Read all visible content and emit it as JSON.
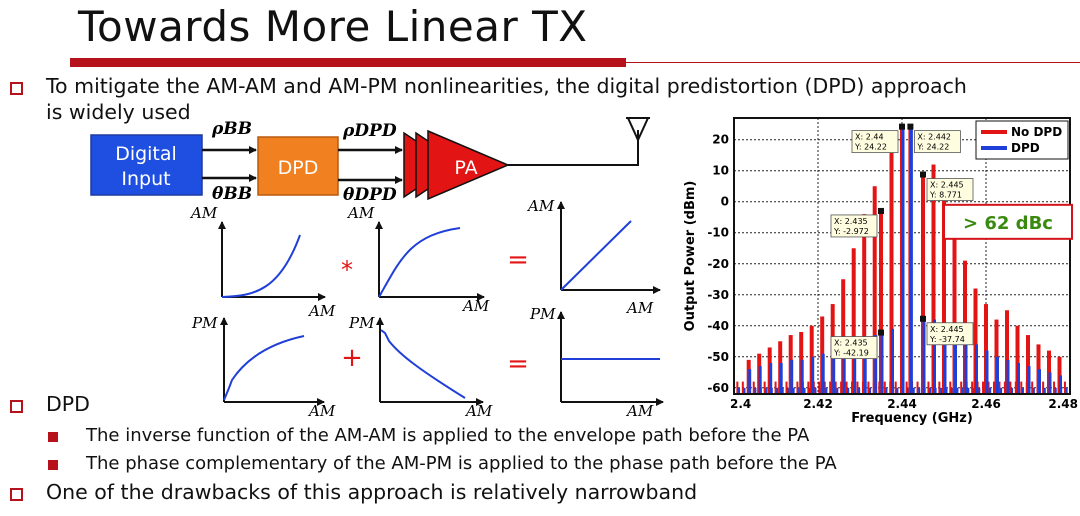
{
  "slide": {
    "title": "Towards More Linear TX",
    "bullet1_line1": "To mitigate the AM-AM and AM-PM nonlinearities, the digital predistortion (DPD) approach",
    "bullet1_line2": "is widely used",
    "bullet2": "DPD",
    "sub1": "The inverse function of the AM-AM is applied to the envelope path before the PA",
    "sub2": "The phase complementary of the AM-PM is applied to the phase path before the PA",
    "bullet3": "One of the drawbacks of this approach is relatively narrowband"
  },
  "diagram": {
    "digital_input_line1": "Digital",
    "digital_input_line2": "Input",
    "rho_bb": "ρBB",
    "theta_bb": "θBB",
    "dpd_label": "DPD",
    "rho_dpd": "ρDPD",
    "theta_dpd": "θDPD",
    "pa_label": "PA",
    "op_star": "*",
    "op_plus": "+",
    "op_eq": "=",
    "axis_am": "AM",
    "axis_pm": "PM",
    "colors": {
      "digital_input": "#1f4fe0",
      "dpd": "#f08020",
      "pa": "#e31414",
      "curve": "#1f3fd8",
      "op": "#e31414"
    }
  },
  "chart_data": {
    "type": "bar",
    "xlabel": "Frequency (GHz)",
    "ylabel": "Output Power (dBm)",
    "xlim": [
      2.4,
      2.48
    ],
    "ylim": [
      -62,
      27
    ],
    "xticks": [
      2.4,
      2.42,
      2.44,
      2.46,
      2.48
    ],
    "xtick_labels": [
      "2.4",
      "2.42",
      "2.44",
      "2.46",
      "2.48"
    ],
    "yticks": [
      20,
      10,
      0,
      -10,
      -20,
      -30,
      -40,
      -50,
      -60
    ],
    "ytick_labels": [
      "20",
      "10",
      "0",
      "-10",
      "-20",
      "-30",
      "-40",
      "-50",
      "-60"
    ],
    "grid": true,
    "legend_position": "top-right",
    "baseline": -62,
    "series": [
      {
        "name": "No DPD",
        "color": "#e31414",
        "x": [
          2.4035,
          2.406,
          2.4085,
          2.411,
          2.4135,
          2.416,
          2.4185,
          2.421,
          2.4235,
          2.426,
          2.4285,
          2.431,
          2.4335,
          2.435,
          2.4375,
          2.44,
          2.442,
          2.445,
          2.4475,
          2.45,
          2.4525,
          2.455,
          2.4575,
          2.46,
          2.4625,
          2.465,
          2.4675,
          2.47,
          2.4725,
          2.475,
          2.4775
        ],
        "values": [
          -51,
          -49,
          -47,
          -45,
          -43,
          -42,
          -40,
          -37,
          -33,
          -25,
          -15,
          -4,
          5,
          -2.972,
          16,
          24.22,
          24.22,
          8.771,
          12,
          4,
          -7,
          -19,
          -28,
          -33,
          -38,
          -35,
          -40,
          -43,
          -46,
          -48,
          -50
        ]
      },
      {
        "name": "DPD",
        "color": "#1f3fd8",
        "x": [
          2.4035,
          2.406,
          2.4085,
          2.411,
          2.4135,
          2.416,
          2.4185,
          2.421,
          2.4235,
          2.426,
          2.4285,
          2.431,
          2.4335,
          2.435,
          2.4375,
          2.44,
          2.442,
          2.445,
          2.4475,
          2.45,
          2.4525,
          2.455,
          2.4575,
          2.46,
          2.4625,
          2.465,
          2.4675,
          2.47,
          2.4725,
          2.475,
          2.4775
        ],
        "values": [
          -54,
          -53,
          -52,
          -52,
          -51,
          -51,
          -50,
          -49,
          -48,
          -47,
          -45,
          -44,
          -43,
          -42.19,
          -41,
          24.22,
          24.22,
          -37.74,
          -38,
          -40,
          -42,
          -44,
          -46,
          -48,
          -50,
          -51,
          -52,
          -53,
          -54,
          -55,
          -56
        ]
      }
    ],
    "noise_floor": [
      {
        "name": "No DPD",
        "color": "#e31414",
        "value": -58
      },
      {
        "name": "DPD",
        "color": "#1f3fd8",
        "value": -60
      }
    ],
    "datatips": [
      {
        "x_label": "X: 2.44",
        "y_label": "Y: 24.22",
        "x": 2.44,
        "y": 24.22,
        "side": "left"
      },
      {
        "x_label": "X: 2.442",
        "y_label": "Y: 24.22",
        "x": 2.442,
        "y": 24.22,
        "side": "right"
      },
      {
        "x_label": "X: 2.435",
        "y_label": "Y: -2.972",
        "x": 2.435,
        "y": -2.972,
        "side": "left"
      },
      {
        "x_label": "X: 2.445",
        "y_label": "Y: 8.771",
        "x": 2.445,
        "y": 8.771,
        "side": "right"
      },
      {
        "x_label": "X: 2.435",
        "y_label": "Y: -42.19",
        "x": 2.435,
        "y": -42.19,
        "side": "left"
      },
      {
        "x_label": "X: 2.445",
        "y_label": "Y: -37.74",
        "x": 2.445,
        "y": -37.74,
        "side": "right"
      }
    ],
    "annotation": {
      "text": "> 62 dBc",
      "color": "#3a8a10",
      "border": "#d4141a"
    }
  }
}
